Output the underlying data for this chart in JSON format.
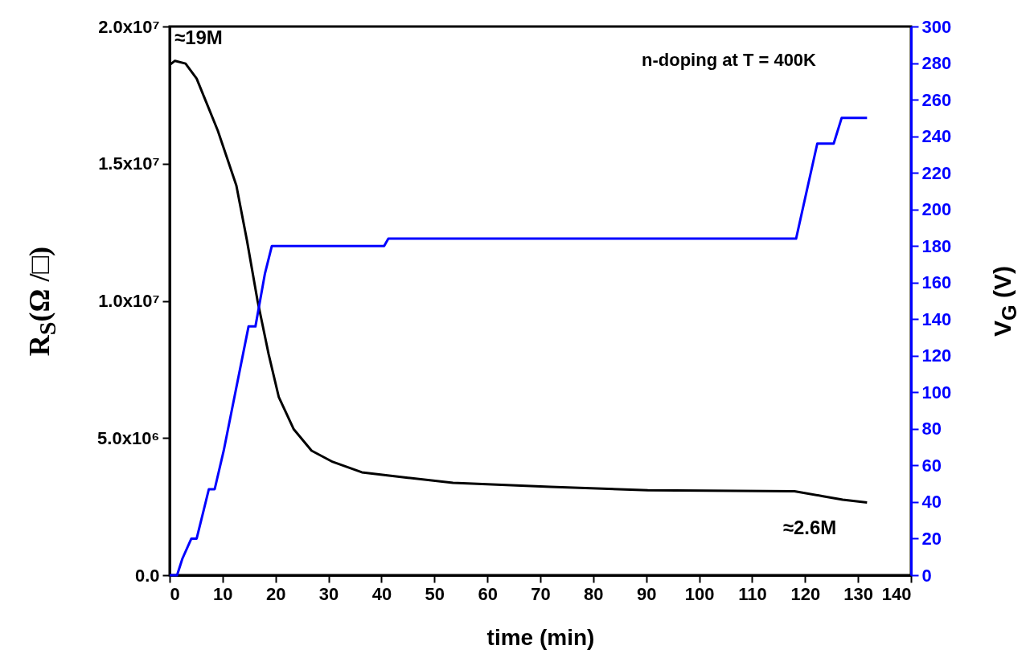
{
  "chart_data": {
    "type": "line",
    "xlabel": "time (min)",
    "ylabel": "R$_{S}$(Ω /□)",
    "y2label": "V$_{G}$ (V)",
    "xlim": [
      0,
      140
    ],
    "xticks": [
      0,
      10,
      20,
      30,
      40,
      50,
      60,
      70,
      80,
      90,
      100,
      110,
      120,
      130,
      140
    ],
    "ylim": [
      0,
      20000000
    ],
    "yticks": [
      {
        "value": 0,
        "label": "0.0"
      },
      {
        "value": 5000000,
        "label": "5.0x10⁶"
      },
      {
        "value": 10000000,
        "label": "1.0x10⁷"
      },
      {
        "value": 15000000,
        "label": "1.5x10⁷"
      },
      {
        "value": 20000000,
        "label": "2.0x10⁷"
      }
    ],
    "y2lim": [
      0,
      300
    ],
    "y2ticks": [
      0,
      20,
      40,
      60,
      80,
      100,
      120,
      140,
      160,
      180,
      200,
      220,
      240,
      260,
      280,
      300
    ],
    "series": [
      {
        "color": "#000000",
        "x": [
          0,
          1,
          3,
          5.1,
          9.1,
          12.6,
          14.6,
          16.6,
          18.7,
          20.6,
          23.4,
          26.8,
          30.8,
          36.3,
          45,
          53.5,
          71.9,
          90.3,
          118,
          123.4,
          127.1,
          131.7
        ],
        "values": [
          18600000,
          18750000,
          18650000,
          18100000,
          16200000,
          14200000,
          12200000,
          10000000,
          8050000,
          6500000,
          5330000,
          4540000,
          4130000,
          3750000,
          3550000,
          3370000,
          3220000,
          3100000,
          3060000,
          2880000,
          2750000,
          2650000
        ]
      },
      {
        "color": "#0000ff",
        "axis": "y2",
        "x": [
          0,
          1.4,
          2.4,
          4.1,
          5.1,
          7.4,
          8.5,
          10.2,
          14.9,
          16.2,
          18,
          19.3,
          40.5,
          41.3,
          118.3,
          122.3,
          125.4,
          126.9,
          131.7
        ],
        "values": [
          0,
          0,
          9,
          20,
          20,
          47,
          47,
          68,
          136,
          136,
          165,
          180,
          180,
          184,
          184,
          236,
          236,
          250,
          250
        ]
      }
    ],
    "annotations": [
      {
        "text": "≈19M",
        "x": 0,
        "y": 18600000
      },
      {
        "text": "≈2.6M",
        "x": 131.7,
        "y": 2650000
      },
      "n-doping at T = 400K"
    ],
    "grid": false
  }
}
